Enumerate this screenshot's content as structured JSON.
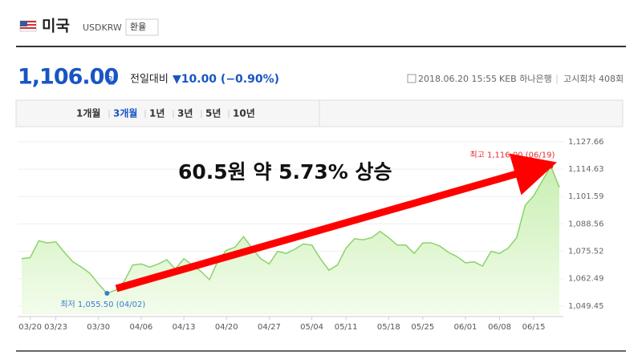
{
  "header": {
    "country": "미국",
    "code": "USDKRW",
    "button": "환율"
  },
  "price": {
    "value": "1,106.00",
    "unit": "원",
    "change_label": "전일대비",
    "change": "▼10.00 (−0.90%)",
    "datetime": "2018.06.20 15:55",
    "bank": "KEB 하나은행",
    "round": "고시회차 408회"
  },
  "tabs": {
    "items": [
      "1개월",
      "3개월",
      "1년",
      "3년",
      "5년",
      "10년"
    ],
    "active": 1
  },
  "chart_data": {
    "type": "area",
    "categories": [
      null,
      "03/20",
      null,
      null,
      "03/23",
      null,
      null,
      null,
      null,
      "03/30",
      null,
      null,
      null,
      null,
      "04/06",
      null,
      null,
      null,
      null,
      "04/13",
      null,
      null,
      null,
      null,
      "04/20",
      null,
      null,
      null,
      null,
      "04/27",
      null,
      null,
      null,
      null,
      "05/04",
      null,
      null,
      null,
      "05/11",
      null,
      null,
      null,
      null,
      "05/18",
      null,
      null,
      null,
      "05/25",
      null,
      null,
      null,
      null,
      "06/01",
      null,
      null,
      null,
      "06/08",
      null,
      null,
      null,
      "06/15",
      null,
      null,
      null
    ],
    "values": [
      1072,
      1072.5,
      1080.5,
      1079.5,
      1080,
      1075,
      1070.5,
      1068,
      1065,
      1060,
      1055.5,
      1057,
      1061,
      1069,
      1069.5,
      1068,
      1069.5,
      1071.5,
      1067,
      1072,
      1069,
      1066,
      1062,
      1071,
      1076,
      1077.5,
      1082.5,
      1077,
      1072,
      1069.5,
      1075.5,
      1074.5,
      1076.5,
      1079,
      1078.5,
      1072,
      1066.5,
      1069,
      1077,
      1081.5,
      1081,
      1082,
      1085,
      1082,
      1078.5,
      1078.5,
      1074.5,
      1079.5,
      1079.5,
      1078,
      1075,
      1073,
      1070,
      1070.5,
      1068.5,
      1075.5,
      1074.5,
      1077,
      1082,
      1097.5,
      1102,
      1109,
      1116,
      1106
    ],
    "color": "#8bd36a",
    "ylim": [
      1045.6,
      1130.3
    ],
    "yticks": [
      {
        "value": 1049.45,
        "label": "1,049.45"
      },
      {
        "value": 1062.49,
        "label": "1,062.49"
      },
      {
        "value": 1075.52,
        "label": "1,075.52"
      },
      {
        "value": 1088.56,
        "label": "1,088.56"
      },
      {
        "value": 1101.59,
        "label": "1,101.59"
      },
      {
        "value": 1114.63,
        "label": "1,114.63"
      },
      {
        "value": 1127.66,
        "label": "1,127.66"
      }
    ],
    "grid": true,
    "min_index": 10,
    "min_label": "최저 1,055.50 (04/02)",
    "min_color": "#3a7bd5",
    "max_index": 62,
    "max_label": "최고 1,116.00 (06/19)",
    "max_color": "#e8282b",
    "annotation": "60.5원  약 5.73% 상승"
  }
}
